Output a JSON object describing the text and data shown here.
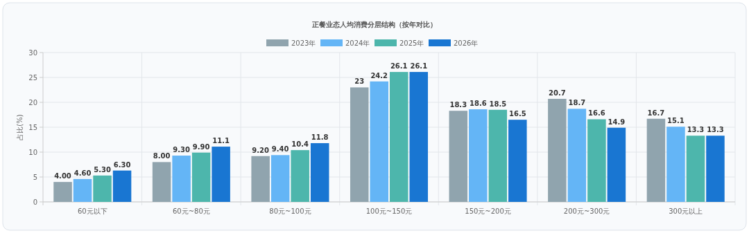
{
  "chart_data": {
    "type": "bar",
    "title": "正餐业态人均消费分层结构（按年对比）",
    "ylabel": "占比(%)",
    "categories": [
      "60元以下",
      "60元~80元",
      "80元~100元",
      "100元~150元",
      "150元~200元",
      "200元~300元",
      "300元以上"
    ],
    "series": [
      {
        "name": "2023年",
        "color": "#90a4ae",
        "values": [
          4.0,
          8.0,
          9.2,
          23,
          18.3,
          20.7,
          16.7
        ],
        "value_labels": [
          "4.00",
          "8.00",
          "9.20",
          "23",
          "18.3",
          "20.7",
          "16.7"
        ]
      },
      {
        "name": "2024年",
        "color": "#64b5f6",
        "values": [
          4.6,
          9.3,
          9.4,
          24.2,
          18.6,
          18.7,
          15.1
        ],
        "value_labels": [
          "4.60",
          "9.30",
          "9.40",
          "24.2",
          "18.6",
          "18.7",
          "15.1"
        ]
      },
      {
        "name": "2025年",
        "color": "#4db6ac",
        "values": [
          5.3,
          9.9,
          10.4,
          26.1,
          18.5,
          16.6,
          13.3
        ],
        "value_labels": [
          "5.30",
          "9.90",
          "10.4",
          "26.1",
          "18.5",
          "16.6",
          "13.3"
        ]
      },
      {
        "name": "2026年",
        "color": "#1976d2",
        "values": [
          6.3,
          11.1,
          11.8,
          26.1,
          16.5,
          14.9,
          13.3
        ],
        "value_labels": [
          "6.30",
          "11.1",
          "11.8",
          "26.1",
          "16.5",
          "14.9",
          "13.3"
        ]
      }
    ],
    "ylim": [
      0,
      30
    ],
    "yticks": [
      0,
      5,
      10,
      15,
      20,
      25,
      30
    ],
    "grid": true,
    "legend": "top"
  }
}
